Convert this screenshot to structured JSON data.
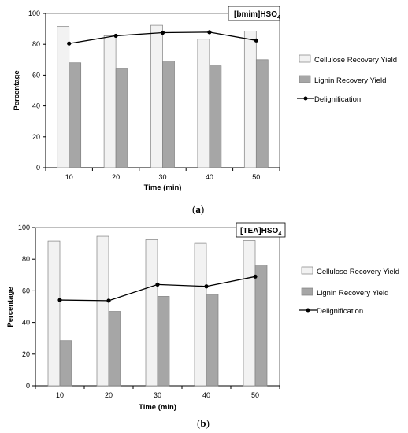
{
  "chart_data": [
    {
      "type": "bar",
      "title": "[bmim]HSO",
      "title_subscript": "4",
      "xlabel": "Time (min)",
      "ylabel": "Percentage",
      "ylim": [
        0,
        100
      ],
      "yticks": [
        "0",
        "20",
        "40",
        "60",
        "80",
        "100"
      ],
      "categories": [
        "10",
        "20",
        "30",
        "40",
        "50"
      ],
      "series": [
        {
          "name": "Cellulose Recovery Yield",
          "type": "bar",
          "color": "#f2f2f2",
          "values": [
            91.5,
            85.5,
            92.3,
            83.3,
            88.5
          ]
        },
        {
          "name": "Lignin Recovery Yield",
          "type": "bar",
          "color": "#a6a6a6",
          "values": [
            68,
            64,
            69.2,
            66,
            70
          ]
        },
        {
          "name": "Delignification",
          "type": "line",
          "color": "#000000",
          "values": [
            80.5,
            85.5,
            87.5,
            87.8,
            82.5
          ]
        }
      ],
      "legend_position": "right",
      "caption": "(a)"
    },
    {
      "type": "bar",
      "title": "[TEA]HSO",
      "title_subscript": "4",
      "xlabel": "Time (min)",
      "ylabel": "Percentage",
      "ylim": [
        0,
        100
      ],
      "yticks": [
        "0",
        "20",
        "40",
        "60",
        "80",
        "100"
      ],
      "categories": [
        "10",
        "20",
        "30",
        "40",
        "50"
      ],
      "series": [
        {
          "name": "Cellulose Recovery Yield",
          "type": "bar",
          "color": "#f2f2f2",
          "values": [
            91.5,
            94.5,
            92.3,
            90,
            91.8
          ]
        },
        {
          "name": "Lignin Recovery Yield",
          "type": "bar",
          "color": "#a6a6a6",
          "values": [
            28.5,
            47,
            56.5,
            57.8,
            76.3
          ]
        },
        {
          "name": "Delignification",
          "type": "line",
          "color": "#000000",
          "values": [
            54.2,
            53.8,
            64,
            62.8,
            69
          ]
        }
      ],
      "legend_position": "right",
      "caption": "(b)"
    }
  ]
}
